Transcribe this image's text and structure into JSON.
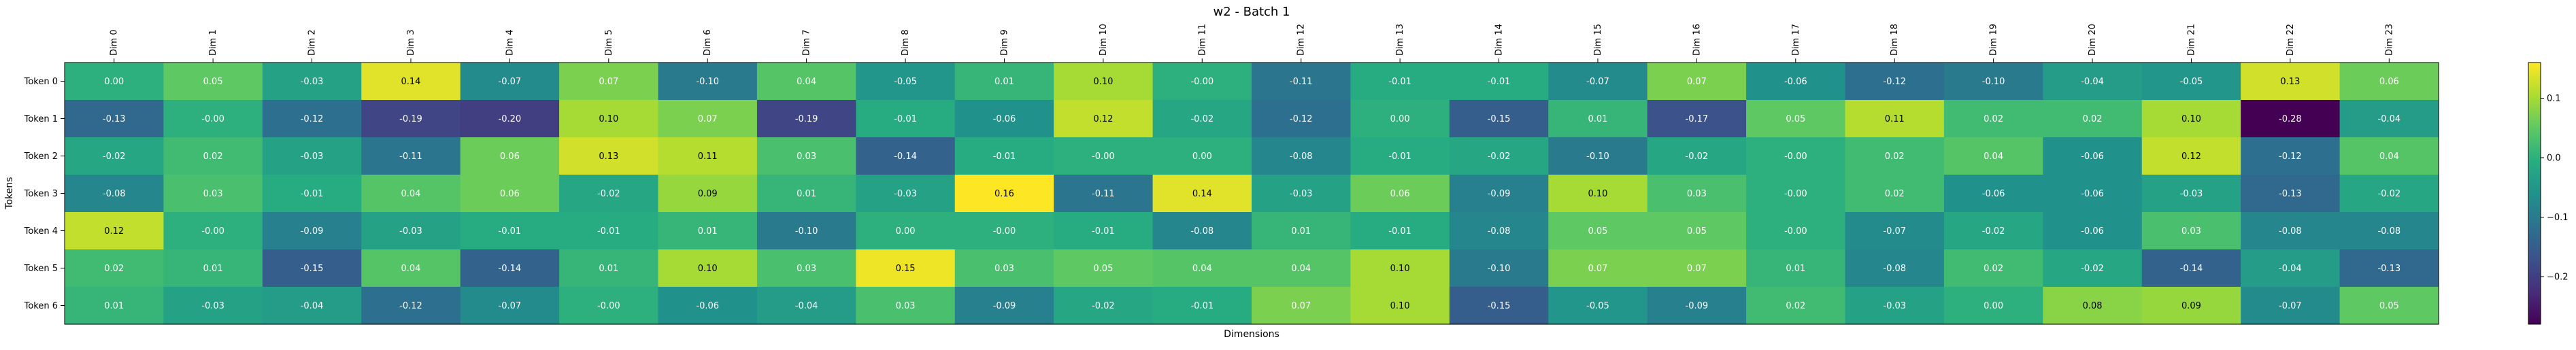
{
  "chart_data": {
    "type": "heatmap",
    "title": "w2 - Batch 1",
    "xlabel": "Dimensions",
    "ylabel": "Tokens",
    "x_ticks": [
      "Dim 0",
      "Dim 1",
      "Dim 2",
      "Dim 3",
      "Dim 4",
      "Dim 5",
      "Dim 6",
      "Dim 7",
      "Dim 8",
      "Dim 9",
      "Dim 10",
      "Dim 11",
      "Dim 12",
      "Dim 13",
      "Dim 14",
      "Dim 15",
      "Dim 16",
      "Dim 17",
      "Dim 18",
      "Dim 19",
      "Dim 20",
      "Dim 21",
      "Dim 22",
      "Dim 23"
    ],
    "y_ticks": [
      "Token 0",
      "Token 1",
      "Token 2",
      "Token 3",
      "Token 4",
      "Token 5",
      "Token 6"
    ],
    "values": [
      [
        0.0,
        0.05,
        -0.03,
        0.14,
        -0.07,
        0.07,
        -0.1,
        0.04,
        -0.05,
        0.01,
        0.1,
        -0.0,
        -0.11,
        -0.01,
        -0.01,
        -0.07,
        0.07,
        -0.06,
        -0.12,
        -0.1,
        -0.04,
        -0.05,
        0.13,
        0.06
      ],
      [
        -0.13,
        -0.0,
        -0.12,
        -0.19,
        -0.2,
        0.1,
        0.07,
        -0.19,
        -0.01,
        -0.06,
        0.12,
        -0.02,
        -0.12,
        0.0,
        -0.15,
        0.01,
        -0.17,
        0.05,
        0.11,
        0.02,
        0.02,
        0.1,
        -0.28,
        -0.04
      ],
      [
        -0.02,
        0.02,
        -0.03,
        -0.11,
        0.06,
        0.13,
        0.11,
        0.03,
        -0.14,
        -0.01,
        -0.0,
        0.0,
        -0.08,
        -0.01,
        -0.02,
        -0.1,
        -0.02,
        -0.0,
        0.02,
        0.04,
        -0.06,
        0.12,
        -0.12,
        0.04
      ],
      [
        -0.08,
        0.03,
        -0.01,
        0.04,
        0.06,
        -0.02,
        0.09,
        0.01,
        -0.03,
        0.16,
        -0.11,
        0.14,
        -0.03,
        0.06,
        -0.09,
        0.1,
        0.03,
        -0.0,
        0.02,
        -0.06,
        -0.06,
        -0.03,
        -0.13,
        -0.02
      ],
      [
        0.12,
        -0.0,
        -0.09,
        -0.03,
        -0.01,
        -0.01,
        0.01,
        -0.1,
        0.0,
        -0.0,
        -0.01,
        -0.08,
        0.01,
        -0.01,
        -0.08,
        0.05,
        0.05,
        -0.0,
        -0.07,
        -0.02,
        -0.06,
        0.03,
        -0.08,
        -0.08
      ],
      [
        0.02,
        0.01,
        -0.15,
        0.04,
        -0.14,
        0.01,
        0.1,
        0.03,
        0.15,
        0.03,
        0.05,
        0.04,
        0.04,
        0.1,
        -0.1,
        0.07,
        0.07,
        0.01,
        -0.08,
        0.02,
        -0.02,
        -0.14,
        -0.04,
        -0.13
      ],
      [
        0.01,
        -0.03,
        -0.04,
        -0.12,
        -0.07,
        -0.0,
        -0.06,
        -0.04,
        0.03,
        -0.09,
        -0.02,
        -0.01,
        0.07,
        0.1,
        -0.15,
        -0.05,
        -0.09,
        0.02,
        -0.03,
        0.0,
        0.08,
        0.09,
        -0.07,
        0.05
      ]
    ],
    "value_labels": [
      [
        "0.00",
        "0.05",
        "-0.03",
        "0.14",
        "-0.07",
        "0.07",
        "-0.10",
        "0.04",
        "-0.05",
        "0.01",
        "0.10",
        "-0.00",
        "-0.11",
        "-0.01",
        "-0.01",
        "-0.07",
        "0.07",
        "-0.06",
        "-0.12",
        "-0.10",
        "-0.04",
        "-0.05",
        "0.13",
        "0.06"
      ],
      [
        "-0.13",
        "-0.00",
        "-0.12",
        "-0.19",
        "-0.20",
        "0.10",
        "0.07",
        "-0.19",
        "-0.01",
        "-0.06",
        "0.12",
        "-0.02",
        "-0.12",
        "0.00",
        "-0.15",
        "0.01",
        "-0.17",
        "0.05",
        "0.11",
        "0.02",
        "0.02",
        "0.10",
        "-0.28",
        "-0.04"
      ],
      [
        "-0.02",
        "0.02",
        "-0.03",
        "-0.11",
        "0.06",
        "0.13",
        "0.11",
        "0.03",
        "-0.14",
        "-0.01",
        "-0.00",
        "0.00",
        "-0.08",
        "-0.01",
        "-0.02",
        "-0.10",
        "-0.02",
        "-0.00",
        "0.02",
        "0.04",
        "-0.06",
        "0.12",
        "-0.12",
        "0.04"
      ],
      [
        "-0.08",
        "0.03",
        "-0.01",
        "0.04",
        "0.06",
        "-0.02",
        "0.09",
        "0.01",
        "-0.03",
        "0.16",
        "-0.11",
        "0.14",
        "-0.03",
        "0.06",
        "-0.09",
        "0.10",
        "0.03",
        "-0.00",
        "0.02",
        "-0.06",
        "-0.06",
        "-0.03",
        "-0.13",
        "-0.02"
      ],
      [
        "0.12",
        "-0.00",
        "-0.09",
        "-0.03",
        "-0.01",
        "-0.01",
        "0.01",
        "-0.10",
        "0.00",
        "-0.00",
        "-0.01",
        "-0.08",
        "0.01",
        "-0.01",
        "-0.08",
        "0.05",
        "0.05",
        "-0.00",
        "-0.07",
        "-0.02",
        "-0.06",
        "0.03",
        "-0.08",
        "-0.08"
      ],
      [
        "0.02",
        "0.01",
        "-0.15",
        "0.04",
        "-0.14",
        "0.01",
        "0.10",
        "0.03",
        "0.15",
        "0.03",
        "0.05",
        "0.04",
        "0.04",
        "0.10",
        "-0.10",
        "0.07",
        "0.07",
        "0.01",
        "-0.08",
        "0.02",
        "-0.02",
        "-0.14",
        "-0.04",
        "-0.13"
      ],
      [
        "0.01",
        "-0.03",
        "-0.04",
        "-0.12",
        "-0.07",
        "-0.00",
        "-0.06",
        "-0.04",
        "0.03",
        "-0.09",
        "-0.02",
        "-0.01",
        "0.07",
        "0.10",
        "-0.15",
        "-0.05",
        "-0.09",
        "0.02",
        "-0.03",
        "0.00",
        "0.08",
        "0.09",
        "-0.07",
        "0.05"
      ]
    ],
    "vmin": -0.28,
    "vmax": 0.16,
    "colormap": "viridis",
    "colorbar": {
      "ticks": [
        0.1,
        0.0,
        -0.1,
        -0.2
      ],
      "tick_labels": [
        "0.1",
        "0.0",
        "−0.1",
        "−0.2"
      ]
    },
    "text_colors": {
      "dark_bg": "#ffffff",
      "light_bg": "#000000"
    }
  }
}
